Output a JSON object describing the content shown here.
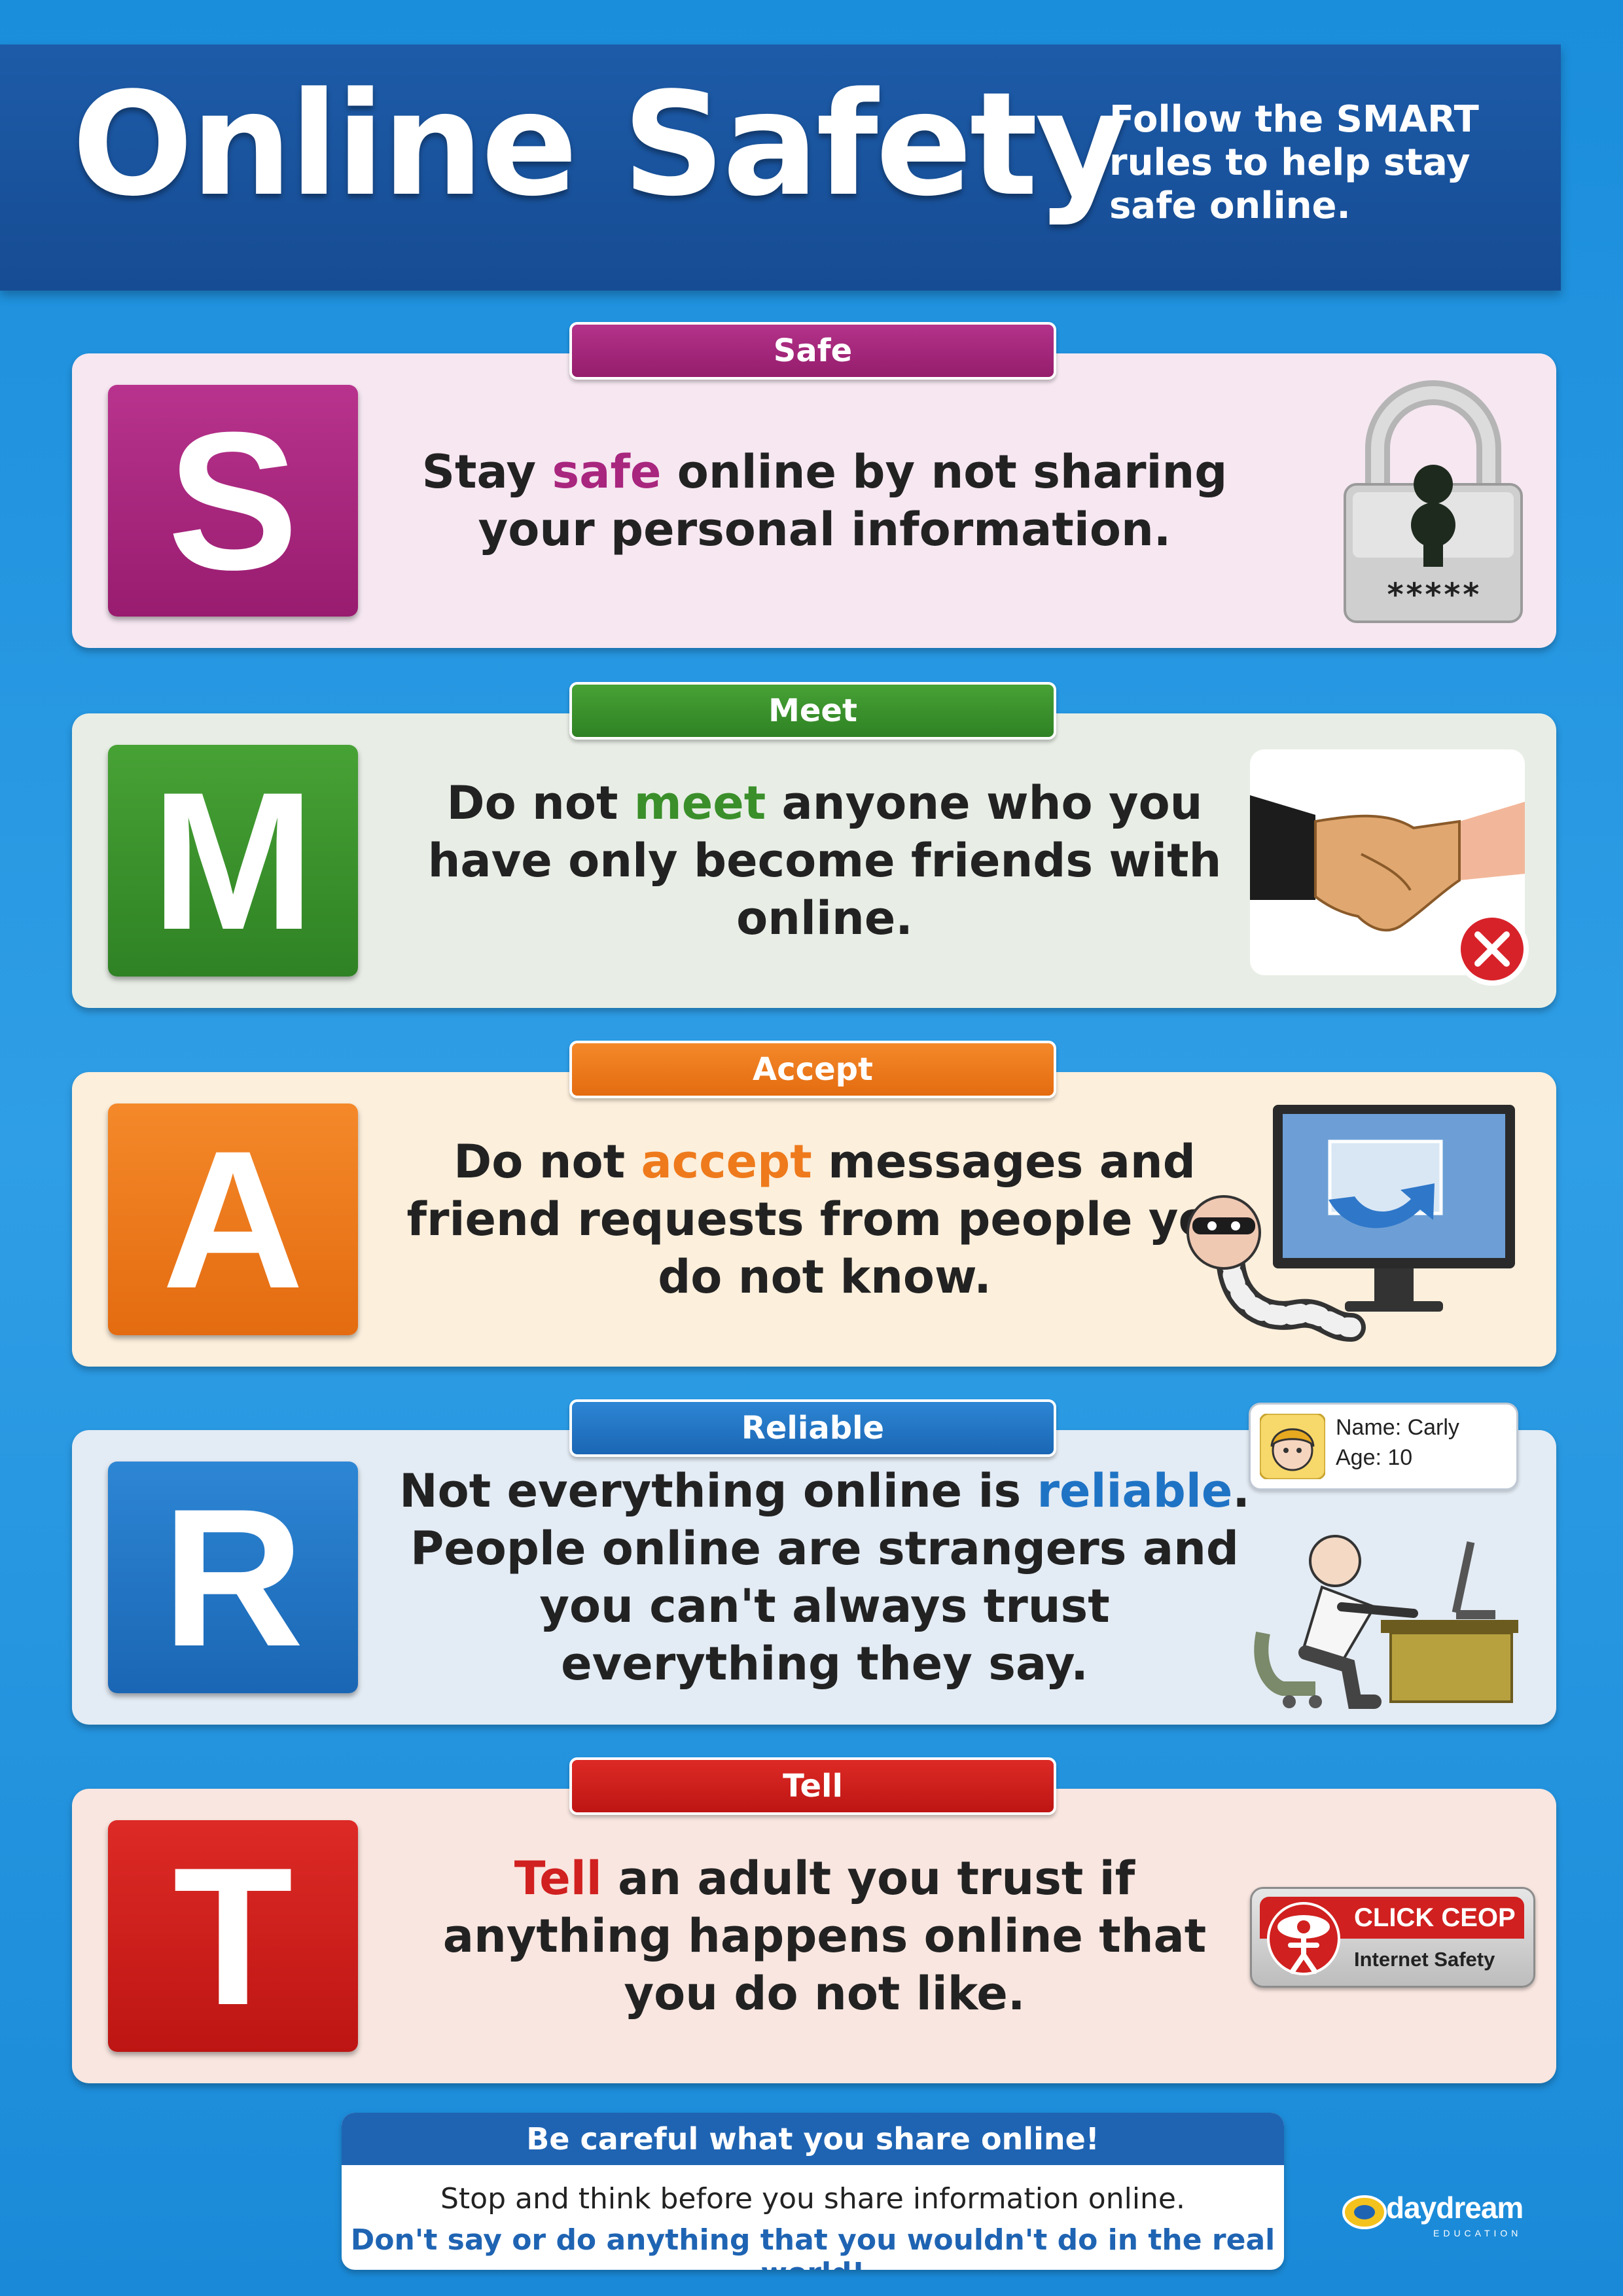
{
  "header": {
    "title": "Online Safety",
    "subtitle_pre": "Follow the ",
    "subtitle_bold": "SMART",
    "subtitle_post": " rules to help stay safe online."
  },
  "colors": {
    "safe": "#a8267e",
    "meet": "#3a8f2a",
    "accept": "#ee7a1c",
    "reliable": "#1f73c4",
    "tell": "#d0201f"
  },
  "rules": [
    {
      "tab": "Safe",
      "letter": "S",
      "pre": "Stay ",
      "highlight": "safe",
      "post": " online by not sharing your personal information.",
      "icon": "padlock-icon",
      "icon_text": "*****"
    },
    {
      "tab": "Meet",
      "letter": "M",
      "pre": "Do not ",
      "highlight": "meet",
      "post": " anyone who you have only become friends with online.",
      "icon": "handshake-icon"
    },
    {
      "tab": "Accept",
      "letter": "A",
      "pre": "Do not ",
      "highlight": "accept",
      "post": " messages and friend requests from people you do not know.",
      "icon": "computer-worm-icon"
    },
    {
      "tab": "Reliable",
      "letter": "R",
      "pre": "Not everything online is ",
      "highlight": "reliable",
      "post": ". People online are strangers and you can't always trust everything they say.",
      "icon": "man-at-computer-icon",
      "bubble_name": "Name: Carly",
      "bubble_age": "Age: 10"
    },
    {
      "tab": "Tell",
      "letter": "T",
      "pre": "",
      "highlight": "Tell",
      "post": " an adult you trust if anything happens online that you do not like.",
      "icon": "ceop-icon",
      "badge_line1": "CLICK CEOP",
      "badge_line2": "Internet Safety"
    }
  ],
  "footer": {
    "heading": "Be careful what you share online!",
    "line1": "Stop and think before you share information online.",
    "line2": "Don't say or do anything that you wouldn't do in the real world!"
  },
  "brand": {
    "name": "daydream",
    "sub": "EDUCATION"
  }
}
